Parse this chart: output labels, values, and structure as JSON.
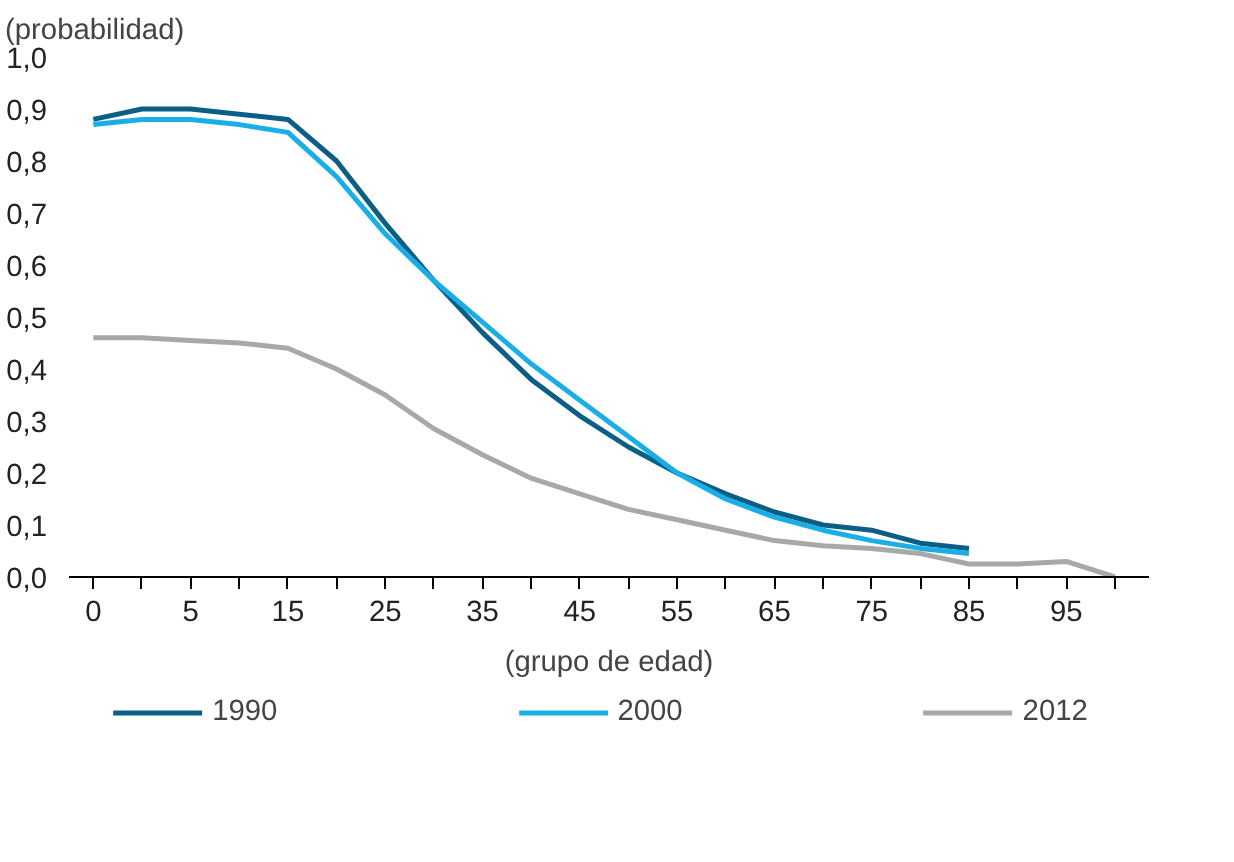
{
  "chart_data": {
    "type": "line",
    "xlabel": "(grupo de edad)",
    "ylabel": "(probabilidad)",
    "categories": [
      "0",
      null,
      "5",
      null,
      "15",
      null,
      "25",
      null,
      "35",
      null,
      "45",
      null,
      "55",
      null,
      "65",
      null,
      "75",
      null,
      "85",
      null,
      "95",
      null
    ],
    "series": [
      {
        "name": "1990",
        "color": "#0b5f86",
        "values": [
          0.88,
          0.9,
          0.9,
          0.89,
          0.88,
          0.8,
          0.68,
          0.57,
          0.47,
          0.38,
          0.31,
          0.25,
          0.2,
          0.16,
          0.125,
          0.1,
          0.09,
          0.065,
          0.055,
          null,
          null,
          null
        ]
      },
      {
        "name": "2000",
        "color": "#1aaee6",
        "values": [
          0.87,
          0.88,
          0.88,
          0.87,
          0.855,
          0.77,
          0.66,
          0.57,
          0.49,
          0.41,
          0.34,
          0.27,
          0.2,
          0.15,
          0.115,
          0.09,
          0.07,
          0.055,
          0.045,
          null,
          null,
          null
        ]
      },
      {
        "name": "2012",
        "color": "#a8a8a8",
        "values": [
          0.46,
          0.46,
          0.455,
          0.45,
          0.44,
          0.4,
          0.35,
          0.285,
          0.235,
          0.19,
          0.16,
          0.13,
          0.11,
          0.09,
          0.07,
          0.06,
          0.055,
          0.045,
          0.025,
          0.025,
          0.03,
          0.0
        ]
      }
    ],
    "ylim": [
      0,
      1
    ],
    "yticks": [
      {
        "value": 0,
        "label": "0,0"
      },
      {
        "value": 0.1,
        "label": "0,1"
      },
      {
        "value": 0.2,
        "label": "0,2"
      },
      {
        "value": 0.3,
        "label": "0,3"
      },
      {
        "value": 0.4,
        "label": "0,4"
      },
      {
        "value": 0.5,
        "label": "0,5"
      },
      {
        "value": 0.6,
        "label": "0,6"
      },
      {
        "value": 0.7,
        "label": "0,7"
      },
      {
        "value": 0.8,
        "label": "0,8"
      },
      {
        "value": 0.9,
        "label": "0,9"
      },
      {
        "value": 1,
        "label": "1,0"
      }
    ],
    "grid": false,
    "legend": "bottom",
    "line_style": "solid",
    "marker": "none"
  }
}
